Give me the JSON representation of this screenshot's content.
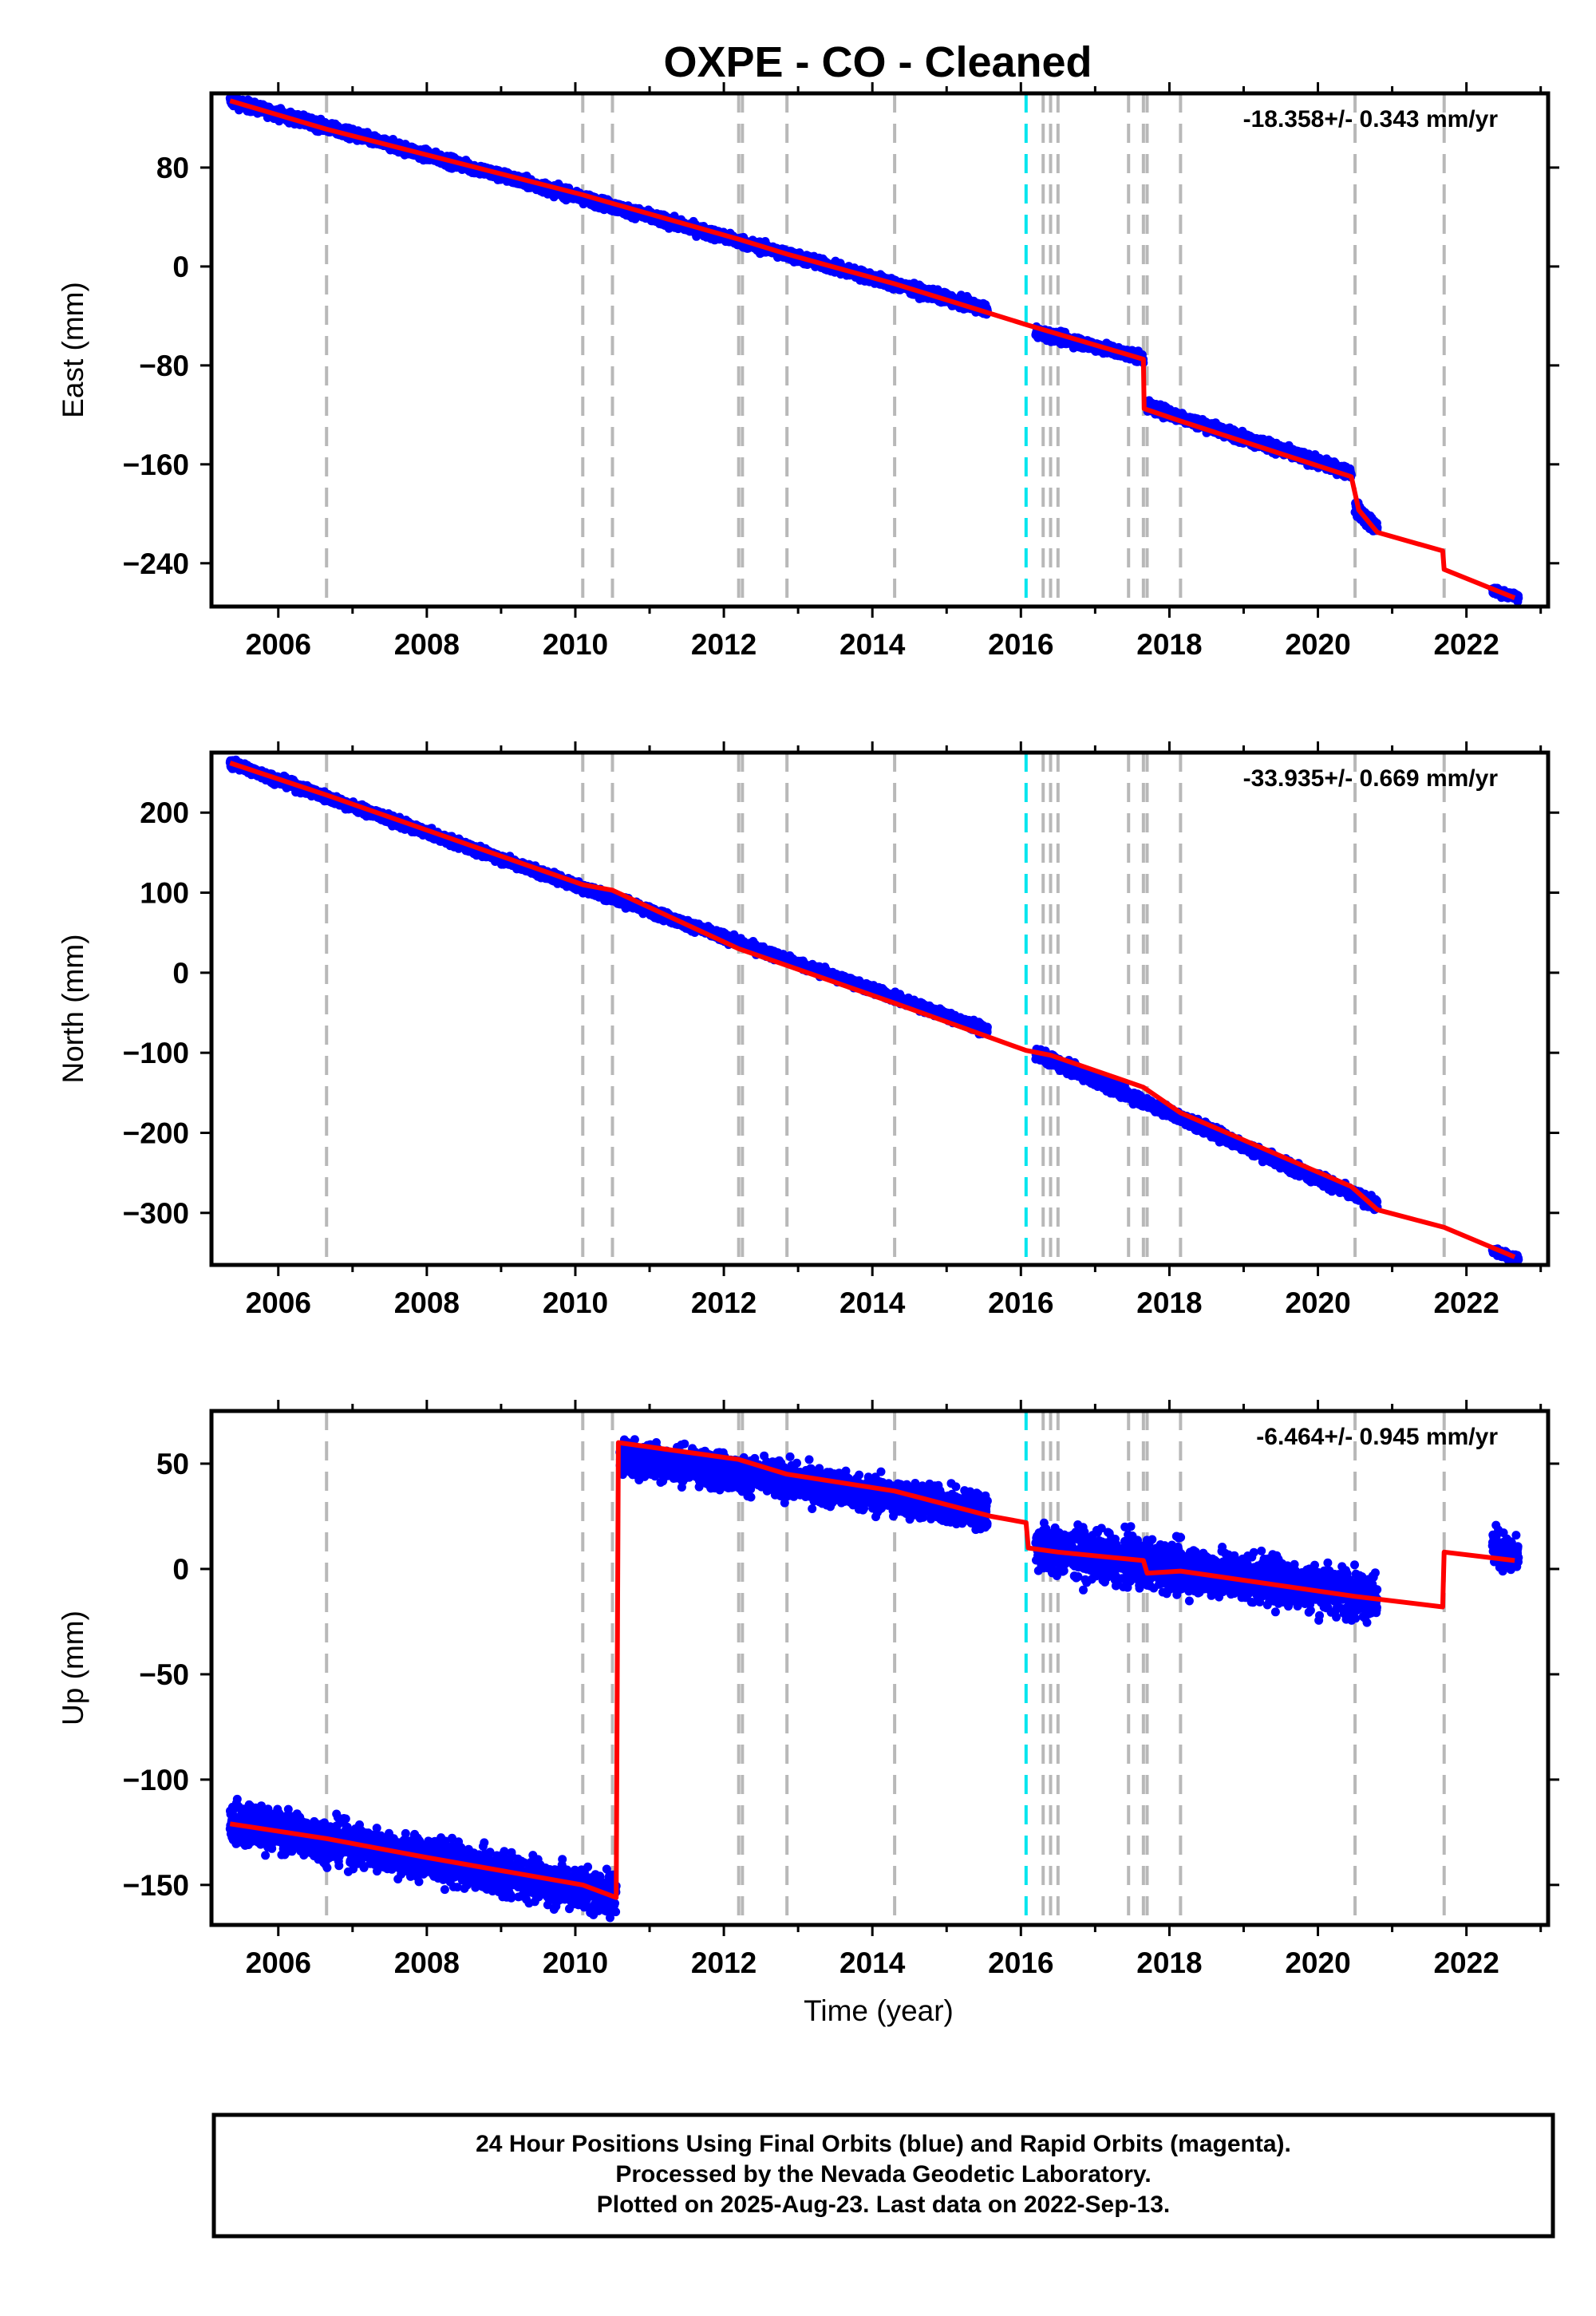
{
  "figure": {
    "title": "OXPE  - CO - Cleaned",
    "xlabel": "Time (year)",
    "caption_lines": [
      "24 Hour Positions Using Final Orbits (blue) and Rapid Orbits (magenta).",
      "Processed by the Nevada Geodetic Laboratory.",
      "Plotted on 2025-Aug-23. Last data on 2022-Sep-13."
    ],
    "colors": {
      "data": "#0000ff",
      "model": "#ff0000",
      "event_line": "#b8b8b8",
      "highlight_line": "#00e5ee",
      "frame": "#000000"
    }
  },
  "chart_data": [
    {
      "type": "scatter",
      "component": "East",
      "ylabel": "East (mm)",
      "rate_text": "-18.358+/- 0.343 mm/yr",
      "xlim": [
        2005.1,
        2023.1
      ],
      "ylim": [
        -275,
        140
      ],
      "xticks": [
        2006,
        2008,
        2010,
        2012,
        2014,
        2016,
        2018,
        2020,
        2022
      ],
      "yticks": [
        80,
        0,
        -80,
        -160,
        -240
      ],
      "ytick_labels": [
        "80",
        "0",
        "−80",
        "−160",
        "−240"
      ],
      "event_lines": [
        2006.65,
        2010.1,
        2010.5,
        2012.2,
        2012.25,
        2012.85,
        2014.3,
        2016.3,
        2016.4,
        2016.5,
        2017.45,
        2017.65,
        2017.7,
        2018.15,
        2020.5,
        2021.7
      ],
      "highlight_lines": [
        2016.07
      ],
      "model_line": [
        [
          2005.35,
          134
        ],
        [
          2006.65,
          111
        ],
        [
          2010.1,
          58
        ],
        [
          2010.5,
          51
        ],
        [
          2012.2,
          22
        ],
        [
          2012.85,
          10
        ],
        [
          2014.3,
          -14
        ],
        [
          2016.07,
          -47
        ],
        [
          2017.65,
          -75
        ],
        [
          2017.66,
          -115
        ],
        [
          2018.15,
          -125
        ],
        [
          2020.45,
          -170
        ],
        [
          2020.55,
          -197
        ],
        [
          2020.8,
          -215
        ],
        [
          2021.68,
          -230
        ],
        [
          2021.7,
          -245
        ],
        [
          2022.65,
          -268
        ]
      ],
      "data_segments": [
        {
          "x": [
            2005.35,
            2015.55
          ],
          "y": [
            134,
            -35
          ],
          "noise": 3
        },
        {
          "x": [
            2016.2,
            2017.65
          ],
          "y": [
            -53,
            -74
          ],
          "noise": 3
        },
        {
          "x": [
            2017.7,
            2020.45
          ],
          "y": [
            -113,
            -167
          ],
          "noise": 3
        },
        {
          "x": [
            2020.5,
            2020.8
          ],
          "y": [
            -195,
            -213
          ],
          "noise": 4
        },
        {
          "x": [
            2022.35,
            2022.7
          ],
          "y": [
            -262,
            -268
          ],
          "noise": 2
        }
      ]
    },
    {
      "type": "scatter",
      "component": "North",
      "ylabel": "North (mm)",
      "rate_text": "-33.935+/- 0.669 mm/yr",
      "xlim": [
        2005.1,
        2023.1
      ],
      "ylim": [
        -365,
        275
      ],
      "xticks": [
        2006,
        2008,
        2010,
        2012,
        2014,
        2016,
        2018,
        2020,
        2022
      ],
      "yticks": [
        200,
        100,
        0,
        -100,
        -200,
        -300
      ],
      "ytick_labels": [
        "200",
        "100",
        "0",
        "−100",
        "−200",
        "−300"
      ],
      "event_lines": [
        2006.65,
        2010.1,
        2010.5,
        2012.2,
        2012.25,
        2012.85,
        2014.3,
        2016.3,
        2016.4,
        2016.5,
        2017.45,
        2017.65,
        2017.7,
        2018.15,
        2020.5,
        2021.7
      ],
      "highlight_lines": [
        2016.07
      ],
      "model_line": [
        [
          2005.35,
          262
        ],
        [
          2006.65,
          222
        ],
        [
          2010.1,
          110
        ],
        [
          2010.5,
          103
        ],
        [
          2012.2,
          30
        ],
        [
          2012.85,
          9
        ],
        [
          2014.3,
          -38
        ],
        [
          2016.07,
          -97
        ],
        [
          2016.4,
          -103
        ],
        [
          2017.65,
          -143
        ],
        [
          2018.15,
          -175
        ],
        [
          2020.45,
          -267
        ],
        [
          2020.8,
          -296
        ],
        [
          2021.7,
          -318
        ],
        [
          2022.65,
          -355
        ]
      ],
      "data_segments": [
        {
          "x": [
            2005.35,
            2015.55
          ],
          "y": [
            262,
            -72
          ],
          "noise": 4
        },
        {
          "x": [
            2016.2,
            2020.8
          ],
          "y": [
            -101,
            -290
          ],
          "noise": 5
        },
        {
          "x": [
            2022.35,
            2022.7
          ],
          "y": [
            -348,
            -357
          ],
          "noise": 3
        }
      ]
    },
    {
      "type": "scatter",
      "component": "Up",
      "ylabel": "Up (mm)",
      "rate_text": "-6.464+/- 0.945 mm/yr",
      "xlim": [
        2005.1,
        2023.1
      ],
      "ylim": [
        -169,
        75
      ],
      "xticks": [
        2006,
        2008,
        2010,
        2012,
        2014,
        2016,
        2018,
        2020,
        2022
      ],
      "yticks": [
        50,
        0,
        -50,
        -100,
        -150
      ],
      "ytick_labels": [
        "50",
        "0",
        "−50",
        "−100",
        "−150"
      ],
      "event_lines": [
        2006.65,
        2010.1,
        2010.5,
        2012.2,
        2012.25,
        2012.85,
        2014.3,
        2016.3,
        2016.4,
        2016.5,
        2017.45,
        2017.65,
        2017.7,
        2018.15,
        2020.5,
        2021.7
      ],
      "highlight_lines": [
        2016.07
      ],
      "model_line": [
        [
          2005.35,
          -121
        ],
        [
          2006.65,
          -128
        ],
        [
          2008.0,
          -137
        ],
        [
          2010.1,
          -150
        ],
        [
          2010.55,
          -156
        ],
        [
          2010.58,
          60
        ],
        [
          2012.2,
          52
        ],
        [
          2012.85,
          45
        ],
        [
          2014.3,
          37
        ],
        [
          2015.6,
          25
        ],
        [
          2016.07,
          22
        ],
        [
          2016.1,
          10
        ],
        [
          2016.5,
          8
        ],
        [
          2017.65,
          4
        ],
        [
          2017.7,
          -2
        ],
        [
          2018.15,
          -1
        ],
        [
          2020.5,
          -13
        ],
        [
          2021.68,
          -18
        ],
        [
          2021.7,
          8
        ],
        [
          2022.65,
          4
        ]
      ],
      "data_segments": [
        {
          "x": [
            2005.35,
            2010.55
          ],
          "y": [
            -120,
            -155
          ],
          "noise": 7
        },
        {
          "x": [
            2010.6,
            2015.55
          ],
          "y": [
            54,
            27
          ],
          "noise": 6
        },
        {
          "x": [
            2016.2,
            2020.8
          ],
          "y": [
            10,
            -13
          ],
          "noise": 8
        },
        {
          "x": [
            2022.35,
            2022.7
          ],
          "y": [
            12,
            4
          ],
          "noise": 6
        }
      ]
    }
  ]
}
